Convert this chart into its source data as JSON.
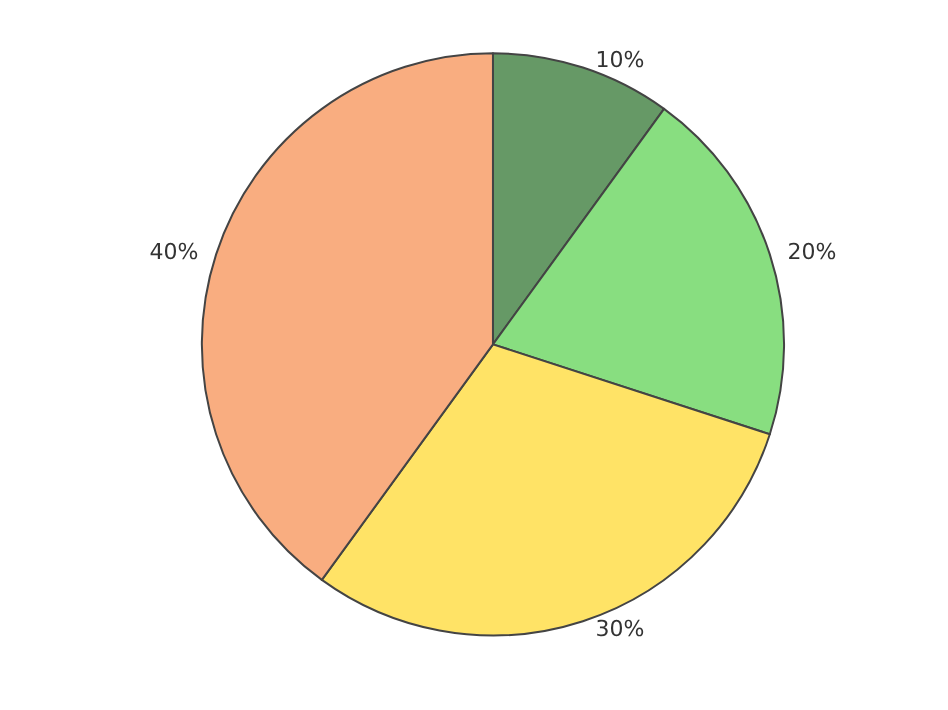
{
  "chart_data": {
    "type": "pie",
    "categories": [
      null,
      null,
      null,
      null
    ],
    "values": [
      10,
      20,
      30,
      40
    ],
    "colors": [
      "#669966",
      "#88de80",
      "#ffe366",
      "#f9ad80"
    ],
    "value_labels": [
      "10%",
      "20%",
      "30%",
      "40%"
    ]
  }
}
